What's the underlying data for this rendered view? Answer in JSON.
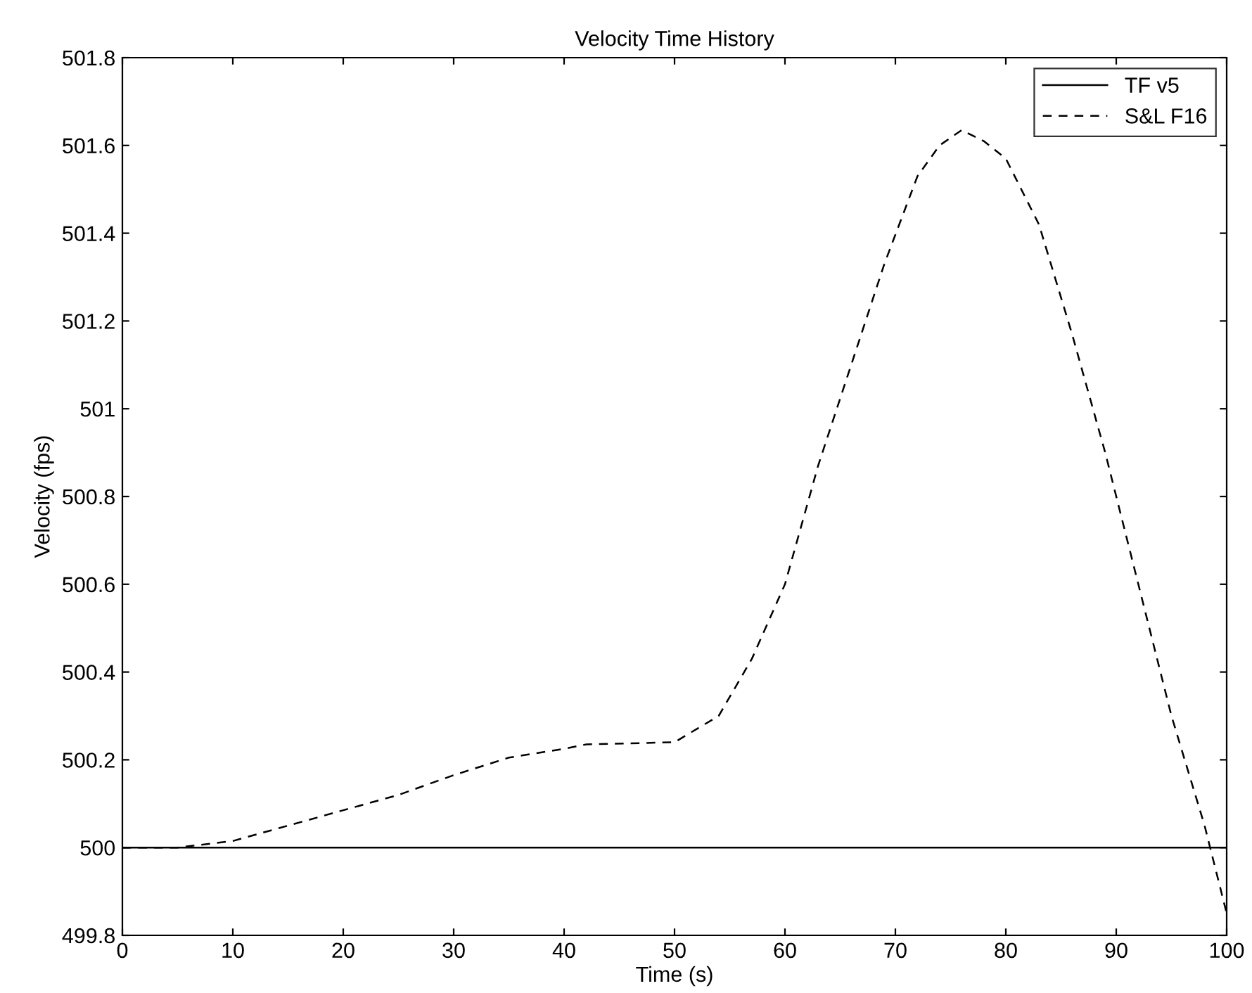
{
  "chart_data": {
    "type": "line",
    "title": "Velocity Time History",
    "xlabel": "Time (s)",
    "ylabel": "Velocity (fps)",
    "xlim": [
      0,
      100
    ],
    "xticks": [
      0,
      10,
      20,
      30,
      40,
      50,
      60,
      70,
      80,
      90,
      100
    ],
    "ylim": [
      499.8,
      501.8
    ],
    "yticks": [
      499.8,
      500,
      500.2,
      500.4,
      500.6,
      500.8,
      501,
      501.2,
      501.4,
      501.6,
      501.8
    ],
    "grid": false,
    "legend": "top right",
    "series": [
      {
        "name": "TF v5",
        "color": "#000000",
        "line_style": "solid",
        "x": [
          0,
          100
        ],
        "values": [
          500,
          500
        ]
      },
      {
        "name": "S&L F16",
        "color": "#000000",
        "line_style": "dashed",
        "x": [
          0,
          5,
          10,
          15,
          20,
          25,
          30,
          35,
          40,
          42,
          50,
          54,
          57,
          60,
          63,
          66,
          69,
          72,
          74,
          76,
          78,
          80,
          83,
          86,
          89,
          92,
          95,
          98,
          100
        ],
        "values": [
          500,
          500,
          500.015,
          500.05,
          500.085,
          500.12,
          500.165,
          500.205,
          500.225,
          500.235,
          500.24,
          500.3,
          500.43,
          500.6,
          500.87,
          501.1,
          501.33,
          501.53,
          501.6,
          501.635,
          501.61,
          501.57,
          501.42,
          501.17,
          500.9,
          500.6,
          500.3,
          500.05,
          499.85
        ]
      }
    ]
  }
}
